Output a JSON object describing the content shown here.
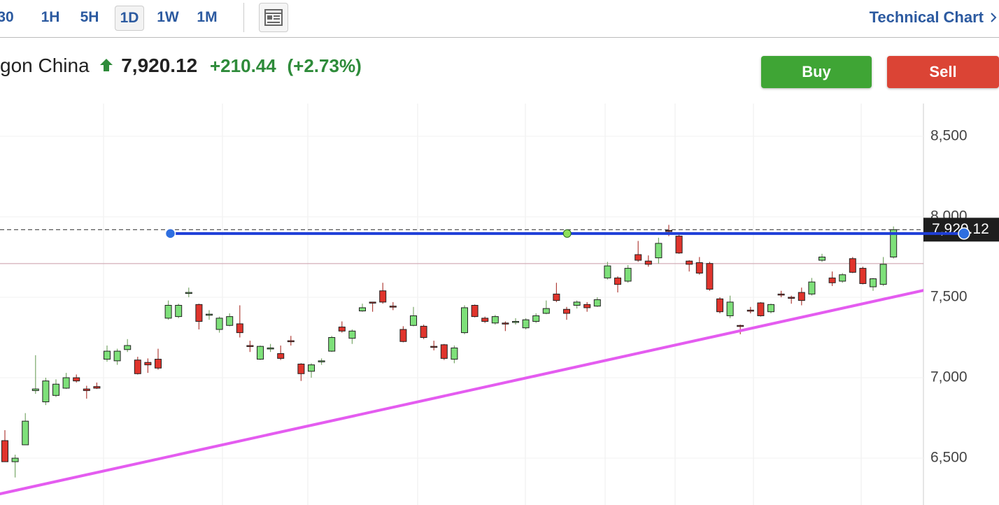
{
  "toolbar": {
    "intervals": [
      "30",
      "1H",
      "5H",
      "1D",
      "1W",
      "1M"
    ],
    "selected_interval": 3,
    "link": "Technical Chart"
  },
  "header": {
    "name": "gon China",
    "price": "7,920.12",
    "change": "+210.44",
    "change_pct": "(+2.73%)"
  },
  "buttons": {
    "buy": "Buy",
    "sell": "Sell"
  },
  "chart": {
    "type": "candlestick",
    "open": [
      6609,
      6478,
      6583,
      6920,
      6850,
      6890,
      6935,
      7000,
      6930,
      6945,
      7115,
      7105,
      7175,
      7110,
      7095,
      7115,
      7370,
      7380,
      7525,
      7455,
      7390,
      7300,
      7325,
      7335,
      7200,
      7115,
      7180,
      7150,
      7230,
      7085,
      7040,
      7100,
      7165,
      7315,
      7245,
      7415,
      7470,
      7540,
      7445,
      7300,
      7325,
      7320,
      7195,
      7205,
      7115,
      7280,
      7450,
      7370,
      7340,
      7340,
      7345,
      7310,
      7350,
      7400,
      7520,
      7425,
      7450,
      7455,
      7445,
      7620,
      7620,
      7600,
      7765,
      7725,
      7745,
      7915,
      7880,
      7725,
      7715,
      7710,
      7490,
      7385,
      7325,
      7420,
      7465,
      7410,
      7520,
      7500,
      7530,
      7520,
      7730,
      7620,
      7600,
      7740,
      7680,
      7565,
      7580,
      7750
    ],
    "high": [
      6674,
      6522,
      6780,
      7140,
      7000,
      6990,
      7030,
      7020,
      6950,
      6970,
      7200,
      7180,
      7240,
      7130,
      7120,
      7180,
      7480,
      7460,
      7560,
      7460,
      7420,
      7380,
      7400,
      7450,
      7230,
      7200,
      7210,
      7200,
      7260,
      7090,
      7090,
      7120,
      7260,
      7350,
      7300,
      7460,
      7470,
      7590,
      7470,
      7320,
      7440,
      7330,
      7230,
      7210,
      7200,
      7450,
      7455,
      7380,
      7390,
      7350,
      7370,
      7370,
      7400,
      7480,
      7590,
      7440,
      7480,
      7470,
      7500,
      7720,
      7630,
      7700,
      7850,
      7760,
      7870,
      7950,
      7890,
      7730,
      7750,
      7720,
      7500,
      7510,
      7330,
      7440,
      7470,
      7460,
      7540,
      7510,
      7560,
      7620,
      7770,
      7660,
      7650,
      7750,
      7690,
      7620,
      7750,
      7940
    ],
    "low": [
      6478,
      6380,
      6583,
      6900,
      6830,
      6880,
      6930,
      6970,
      6870,
      6930,
      7100,
      7080,
      7160,
      7020,
      7030,
      7050,
      7360,
      7370,
      7500,
      7300,
      7360,
      7280,
      7320,
      7250,
      7160,
      7110,
      7160,
      7110,
      7200,
      6980,
      7000,
      7080,
      7160,
      7280,
      7210,
      7410,
      7410,
      7460,
      7420,
      7220,
      7320,
      7240,
      7170,
      7110,
      7090,
      7270,
      7375,
      7340,
      7330,
      7290,
      7330,
      7300,
      7340,
      7395,
      7470,
      7360,
      7430,
      7410,
      7440,
      7610,
      7530,
      7590,
      7720,
      7690,
      7710,
      7880,
      7770,
      7660,
      7640,
      7540,
      7400,
      7370,
      7270,
      7400,
      7380,
      7400,
      7500,
      7460,
      7450,
      7510,
      7720,
      7570,
      7590,
      7650,
      7580,
      7540,
      7570,
      7740
    ],
    "close": [
      6478,
      6500,
      6730,
      6930,
      6980,
      6960,
      7000,
      6980,
      6920,
      6935,
      7165,
      7165,
      7200,
      7025,
      7080,
      7060,
      7450,
      7450,
      7530,
      7350,
      7395,
      7370,
      7380,
      7280,
      7195,
      7195,
      7185,
      7120,
      7225,
      7025,
      7080,
      7105,
      7250,
      7290,
      7290,
      7435,
      7465,
      7470,
      7440,
      7225,
      7385,
      7250,
      7190,
      7120,
      7185,
      7435,
      7380,
      7350,
      7380,
      7335,
      7350,
      7360,
      7385,
      7430,
      7480,
      7400,
      7470,
      7435,
      7485,
      7695,
      7580,
      7680,
      7730,
      7705,
      7835,
      7910,
      7775,
      7705,
      7650,
      7550,
      7410,
      7470,
      7320,
      7415,
      7385,
      7455,
      7515,
      7495,
      7480,
      7595,
      7750,
      7590,
      7640,
      7655,
      7585,
      7615,
      7705,
      7920
    ],
    "up_color": "#7ee07a",
    "down_color": "#e0342c",
    "ylim": [
      6209,
      8704
    ],
    "yticks": [
      {
        "value": 6500,
        "label": "6,500"
      },
      {
        "value": 7000,
        "label": "7,000"
      },
      {
        "value": 7500,
        "label": "7,500"
      },
      {
        "value": 8000,
        "label": "8,000"
      },
      {
        "value": 8500,
        "label": "8,500"
      }
    ],
    "last_price": {
      "value": 7920.12,
      "label": "7,920.12"
    },
    "reference_line": {
      "value": 7709,
      "color": "#c99aa8"
    },
    "horizontal_drawing": {
      "start": [
        16.2,
        7896
      ],
      "end": [
        93.9,
        7896
      ],
      "color": "#1f3fd8"
    },
    "trend_drawing": {
      "start": [
        -0.5,
        6278
      ],
      "end": [
        90.6,
        7552
      ],
      "color": "#e45cf0"
    }
  }
}
